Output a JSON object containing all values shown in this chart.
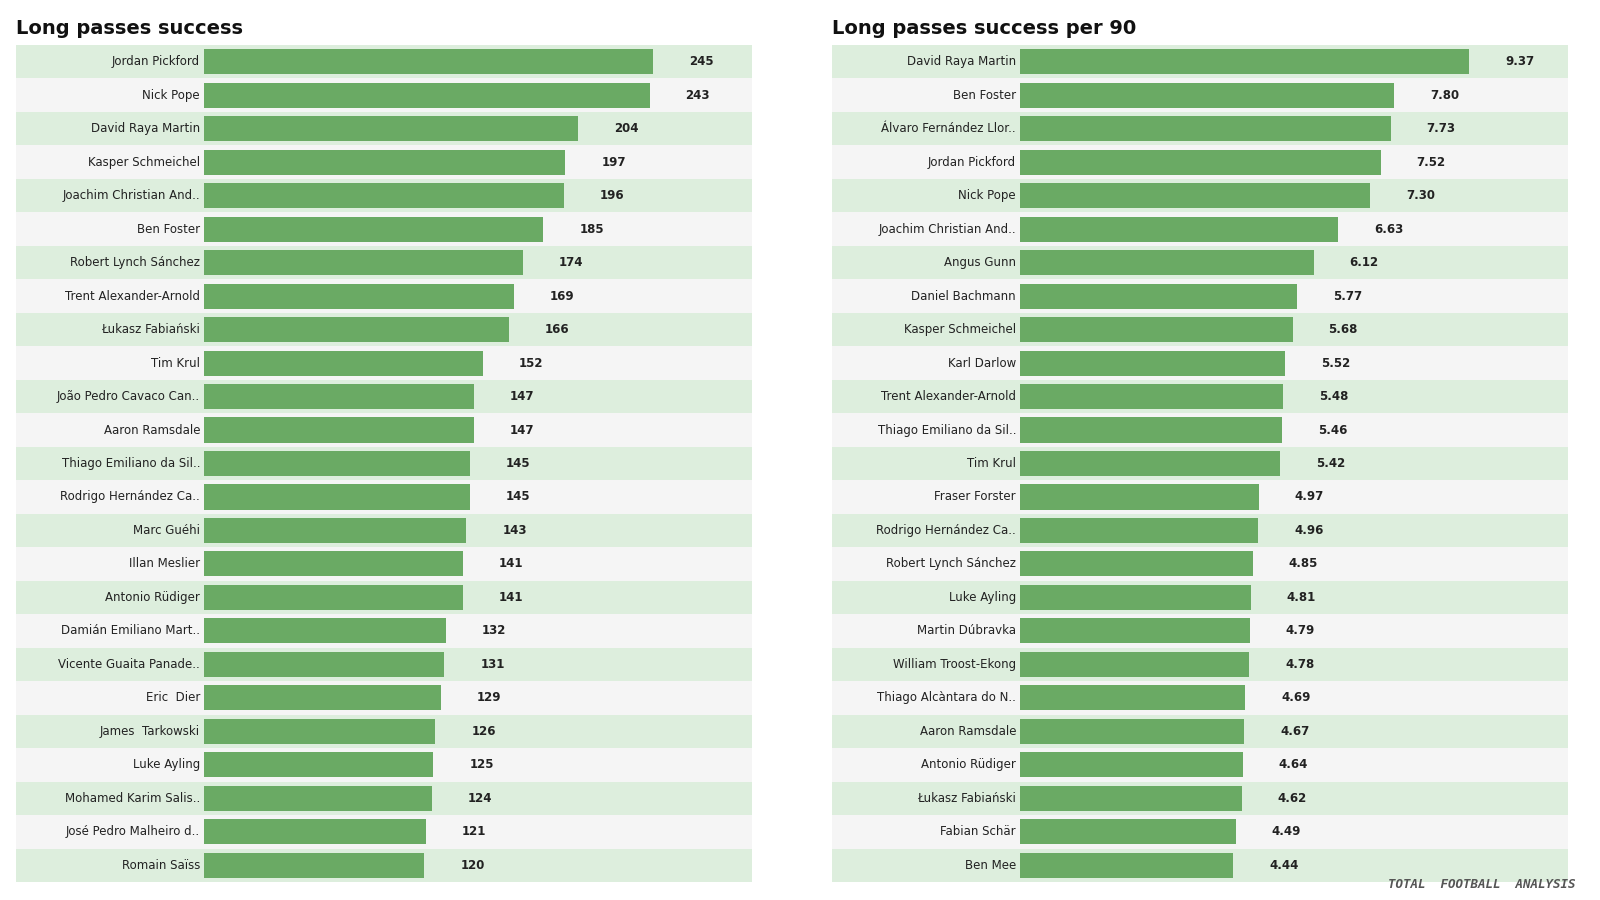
{
  "left_title": "Long passes success",
  "right_title": "Long passes success per 90",
  "left_data": [
    {
      "name": "Jordan Pickford",
      "value": 245
    },
    {
      "name": "Nick Pope",
      "value": 243
    },
    {
      "name": "David Raya Martin",
      "value": 204
    },
    {
      "name": "Kasper Schmeichel",
      "value": 197
    },
    {
      "name": "Joachim Christian And..",
      "value": 196
    },
    {
      "name": "Ben Foster",
      "value": 185
    },
    {
      "name": "Robert Lynch Sánchez",
      "value": 174
    },
    {
      "name": "Trent Alexander-Arnold",
      "value": 169
    },
    {
      "name": "Łukasz Fabiański",
      "value": 166
    },
    {
      "name": "Tim Krul",
      "value": 152
    },
    {
      "name": "João Pedro Cavaco Can..",
      "value": 147
    },
    {
      "name": "Aaron Ramsdale",
      "value": 147
    },
    {
      "name": "Thiago Emiliano da Sil..",
      "value": 145
    },
    {
      "name": "Rodrigo Hernández Ca..",
      "value": 145
    },
    {
      "name": "Marc Guéhi",
      "value": 143
    },
    {
      "name": "Illan Meslier",
      "value": 141
    },
    {
      "name": "Antonio Rüdiger",
      "value": 141
    },
    {
      "name": "Damián Emiliano Mart..",
      "value": 132
    },
    {
      "name": "Vicente Guaita Panade..",
      "value": 131
    },
    {
      "name": "Eric  Dier",
      "value": 129
    },
    {
      "name": "James  Tarkowski",
      "value": 126
    },
    {
      "name": "Luke Ayling",
      "value": 125
    },
    {
      "name": "Mohamed Karim Salis..",
      "value": 124
    },
    {
      "name": "José Pedro Malheiro d..",
      "value": 121
    },
    {
      "name": "Romain Saïss",
      "value": 120
    }
  ],
  "right_data": [
    {
      "name": "David Raya Martin",
      "value": 9.37
    },
    {
      "name": "Ben Foster",
      "value": 7.8
    },
    {
      "name": "Álvaro Fernández Llor..",
      "value": 7.73
    },
    {
      "name": "Jordan Pickford",
      "value": 7.52
    },
    {
      "name": "Nick Pope",
      "value": 7.3
    },
    {
      "name": "Joachim Christian And..",
      "value": 6.63
    },
    {
      "name": "Angus Gunn",
      "value": 6.12
    },
    {
      "name": "Daniel Bachmann",
      "value": 5.77
    },
    {
      "name": "Kasper Schmeichel",
      "value": 5.68
    },
    {
      "name": "Karl Darlow",
      "value": 5.52
    },
    {
      "name": "Trent Alexander-Arnold",
      "value": 5.48
    },
    {
      "name": "Thiago Emiliano da Sil..",
      "value": 5.46
    },
    {
      "name": "Tim Krul",
      "value": 5.42
    },
    {
      "name": "Fraser Forster",
      "value": 4.97
    },
    {
      "name": "Rodrigo Hernández Ca..",
      "value": 4.96
    },
    {
      "name": "Robert Lynch Sánchez",
      "value": 4.85
    },
    {
      "name": "Luke Ayling",
      "value": 4.81
    },
    {
      "name": "Martin Dúbravka",
      "value": 4.79
    },
    {
      "name": "William Troost-Ekong",
      "value": 4.78
    },
    {
      "name": "Thiago Alcàntara do N..",
      "value": 4.69
    },
    {
      "name": "Aaron Ramsdale",
      "value": 4.67
    },
    {
      "name": "Antonio Rüdiger",
      "value": 4.64
    },
    {
      "name": "Łukasz Fabiański",
      "value": 4.62
    },
    {
      "name": "Fabian Schär",
      "value": 4.49
    },
    {
      "name": "Ben Mee",
      "value": 4.44
    }
  ],
  "bar_color": "#6aaa64",
  "row_alt_bg": "#ddeedd",
  "row_bg": "#f5f5f5",
  "bg_color": "#ffffff",
  "title_fontsize": 14,
  "label_fontsize": 8.5,
  "value_fontsize": 8.5,
  "watermark": "TOTAL  FOOTBALL  ANALYSIS"
}
